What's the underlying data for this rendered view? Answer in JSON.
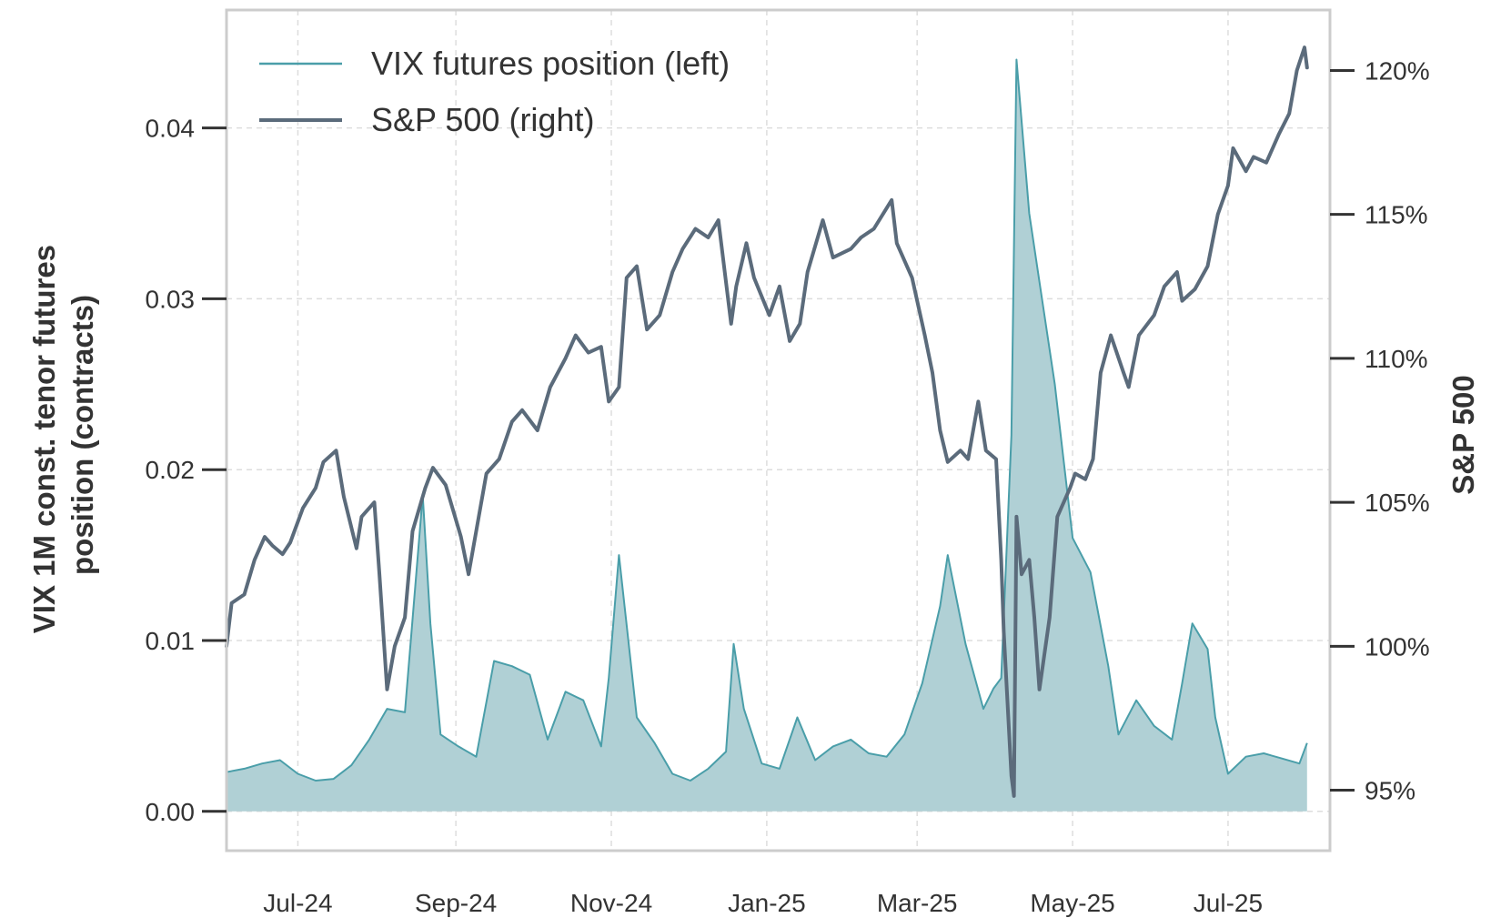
{
  "chart_data": {
    "type": "line",
    "title": "",
    "ylabel_left": "VIX 1M const. tenor futures position (contracts)",
    "ylabel_left_lines": [
      "VIX 1M const. tenor futures",
      "position (contracts)"
    ],
    "ylabel_right": "S&P 500",
    "xlim": [
      "2024-06-03",
      "2025-08-10"
    ],
    "ylim_left": [
      -0.0023,
      0.0469
    ],
    "ylim_right": [
      92.9,
      122.1
    ],
    "x_ticks": [
      {
        "date": "2024-07-01",
        "label": "Jul-24"
      },
      {
        "date": "2024-09-01",
        "label": "Sep-24"
      },
      {
        "date": "2024-11-01",
        "label": "Nov-24"
      },
      {
        "date": "2025-01-01",
        "label": "Jan-25"
      },
      {
        "date": "2025-03-01",
        "label": "Mar-25"
      },
      {
        "date": "2025-05-01",
        "label": "May-25"
      },
      {
        "date": "2025-07-01",
        "label": "Jul-25"
      }
    ],
    "y_left_ticks": [
      {
        "value": 0.0,
        "label": "0.00"
      },
      {
        "value": 0.01,
        "label": "0.01"
      },
      {
        "value": 0.02,
        "label": "0.02"
      },
      {
        "value": 0.03,
        "label": "0.03"
      },
      {
        "value": 0.04,
        "label": "0.04"
      }
    ],
    "y_right_ticks": [
      {
        "value": 95,
        "label": "95%"
      },
      {
        "value": 100,
        "label": "100%"
      },
      {
        "value": 105,
        "label": "105%"
      },
      {
        "value": 110,
        "label": "110%"
      },
      {
        "value": 115,
        "label": "115%"
      },
      {
        "value": 120,
        "label": "120%"
      }
    ],
    "grid": true,
    "legend_position": "top-left",
    "series": [
      {
        "name": "VIX futures position (left)",
        "axis": "left",
        "style": "area",
        "color": "#4a9ea9",
        "fill": "#b0d0d5",
        "points": [
          [
            "2024-06-03",
            0.0023
          ],
          [
            "2024-06-10",
            0.0025
          ],
          [
            "2024-06-17",
            0.0028
          ],
          [
            "2024-06-24",
            0.003
          ],
          [
            "2024-07-01",
            0.0022
          ],
          [
            "2024-07-08",
            0.0018
          ],
          [
            "2024-07-15",
            0.0019
          ],
          [
            "2024-07-22",
            0.0027
          ],
          [
            "2024-07-29",
            0.0042
          ],
          [
            "2024-08-05",
            0.006
          ],
          [
            "2024-08-12",
            0.0058
          ],
          [
            "2024-08-19",
            0.0185
          ],
          [
            "2024-08-22",
            0.011
          ],
          [
            "2024-08-26",
            0.0045
          ],
          [
            "2024-09-02",
            0.0038
          ],
          [
            "2024-09-09",
            0.0032
          ],
          [
            "2024-09-16",
            0.0088
          ],
          [
            "2024-09-23",
            0.0085
          ],
          [
            "2024-09-30",
            0.008
          ],
          [
            "2024-10-07",
            0.0042
          ],
          [
            "2024-10-14",
            0.007
          ],
          [
            "2024-10-21",
            0.0065
          ],
          [
            "2024-10-28",
            0.0038
          ],
          [
            "2024-10-31",
            0.0078
          ],
          [
            "2024-11-04",
            0.015
          ],
          [
            "2024-11-11",
            0.0055
          ],
          [
            "2024-11-18",
            0.004
          ],
          [
            "2024-11-25",
            0.0022
          ],
          [
            "2024-12-02",
            0.0018
          ],
          [
            "2024-12-09",
            0.0025
          ],
          [
            "2024-12-16",
            0.0035
          ],
          [
            "2024-12-19",
            0.0098
          ],
          [
            "2024-12-23",
            0.006
          ],
          [
            "2024-12-30",
            0.0028
          ],
          [
            "2025-01-06",
            0.0025
          ],
          [
            "2025-01-13",
            0.0055
          ],
          [
            "2025-01-20",
            0.003
          ],
          [
            "2025-01-27",
            0.0038
          ],
          [
            "2025-02-03",
            0.0042
          ],
          [
            "2025-02-10",
            0.0034
          ],
          [
            "2025-02-17",
            0.0032
          ],
          [
            "2025-02-24",
            0.0045
          ],
          [
            "2025-03-03",
            0.0075
          ],
          [
            "2025-03-10",
            0.012
          ],
          [
            "2025-03-13",
            0.015
          ],
          [
            "2025-03-20",
            0.0098
          ],
          [
            "2025-03-27",
            0.006
          ],
          [
            "2025-03-31",
            0.0072
          ],
          [
            "2025-04-03",
            0.0078
          ],
          [
            "2025-04-07",
            0.022
          ],
          [
            "2025-04-09",
            0.044
          ],
          [
            "2025-04-14",
            0.035
          ],
          [
            "2025-04-18",
            0.031
          ],
          [
            "2025-04-24",
            0.025
          ],
          [
            "2025-05-01",
            0.016
          ],
          [
            "2025-05-08",
            0.014
          ],
          [
            "2025-05-15",
            0.0085
          ],
          [
            "2025-05-19",
            0.0045
          ],
          [
            "2025-05-26",
            0.0065
          ],
          [
            "2025-06-02",
            0.005
          ],
          [
            "2025-06-09",
            0.0042
          ],
          [
            "2025-06-13",
            0.0075
          ],
          [
            "2025-06-17",
            0.011
          ],
          [
            "2025-06-23",
            0.0095
          ],
          [
            "2025-06-26",
            0.0055
          ],
          [
            "2025-07-01",
            0.0022
          ],
          [
            "2025-07-08",
            0.0032
          ],
          [
            "2025-07-15",
            0.0034
          ],
          [
            "2025-07-22",
            0.0031
          ],
          [
            "2025-07-29",
            0.0028
          ],
          [
            "2025-08-01",
            0.004
          ]
        ]
      },
      {
        "name": "S&P 500 (right)",
        "axis": "right",
        "style": "line",
        "color": "#5b6b7b",
        "points": [
          [
            "2024-06-03",
            100.0
          ],
          [
            "2024-06-05",
            101.5
          ],
          [
            "2024-06-10",
            101.8
          ],
          [
            "2024-06-14",
            103.0
          ],
          [
            "2024-06-18",
            103.8
          ],
          [
            "2024-06-21",
            103.5
          ],
          [
            "2024-06-25",
            103.2
          ],
          [
            "2024-06-28",
            103.6
          ],
          [
            "2024-07-03",
            104.8
          ],
          [
            "2024-07-08",
            105.5
          ],
          [
            "2024-07-11",
            106.4
          ],
          [
            "2024-07-16",
            106.8
          ],
          [
            "2024-07-19",
            105.2
          ],
          [
            "2024-07-24",
            103.4
          ],
          [
            "2024-07-26",
            104.5
          ],
          [
            "2024-07-31",
            105.0
          ],
          [
            "2024-08-02",
            102.5
          ],
          [
            "2024-08-05",
            98.5
          ],
          [
            "2024-08-08",
            100.0
          ],
          [
            "2024-08-12",
            101.0
          ],
          [
            "2024-08-15",
            104.0
          ],
          [
            "2024-08-20",
            105.5
          ],
          [
            "2024-08-23",
            106.2
          ],
          [
            "2024-08-28",
            105.6
          ],
          [
            "2024-09-03",
            103.8
          ],
          [
            "2024-09-06",
            102.5
          ],
          [
            "2024-09-10",
            104.5
          ],
          [
            "2024-09-13",
            106.0
          ],
          [
            "2024-09-18",
            106.5
          ],
          [
            "2024-09-23",
            107.8
          ],
          [
            "2024-09-27",
            108.2
          ],
          [
            "2024-10-03",
            107.5
          ],
          [
            "2024-10-08",
            109.0
          ],
          [
            "2024-10-14",
            110.0
          ],
          [
            "2024-10-18",
            110.8
          ],
          [
            "2024-10-23",
            110.2
          ],
          [
            "2024-10-28",
            110.4
          ],
          [
            "2024-10-31",
            108.5
          ],
          [
            "2024-11-04",
            109.0
          ],
          [
            "2024-11-07",
            112.8
          ],
          [
            "2024-11-11",
            113.2
          ],
          [
            "2024-11-15",
            111.0
          ],
          [
            "2024-11-20",
            111.5
          ],
          [
            "2024-11-25",
            113.0
          ],
          [
            "2024-11-29",
            113.8
          ],
          [
            "2024-12-04",
            114.5
          ],
          [
            "2024-12-09",
            114.2
          ],
          [
            "2024-12-13",
            114.8
          ],
          [
            "2024-12-18",
            111.2
          ],
          [
            "2024-12-20",
            112.5
          ],
          [
            "2024-12-24",
            114.0
          ],
          [
            "2024-12-27",
            112.8
          ],
          [
            "2025-01-02",
            111.5
          ],
          [
            "2025-01-06",
            112.5
          ],
          [
            "2025-01-10",
            110.6
          ],
          [
            "2025-01-14",
            111.2
          ],
          [
            "2025-01-17",
            113.0
          ],
          [
            "2025-01-23",
            114.8
          ],
          [
            "2025-01-27",
            113.5
          ],
          [
            "2025-02-03",
            113.8
          ],
          [
            "2025-02-07",
            114.2
          ],
          [
            "2025-02-12",
            114.5
          ],
          [
            "2025-02-19",
            115.5
          ],
          [
            "2025-02-21",
            114.0
          ],
          [
            "2025-02-27",
            112.8
          ],
          [
            "2025-03-04",
            110.8
          ],
          [
            "2025-03-07",
            109.5
          ],
          [
            "2025-03-10",
            107.5
          ],
          [
            "2025-03-13",
            106.4
          ],
          [
            "2025-03-18",
            106.8
          ],
          [
            "2025-03-21",
            106.5
          ],
          [
            "2025-03-25",
            108.5
          ],
          [
            "2025-03-28",
            106.8
          ],
          [
            "2025-04-01",
            106.5
          ],
          [
            "2025-04-03",
            103.0
          ],
          [
            "2025-04-04",
            100.5
          ],
          [
            "2025-04-07",
            95.5
          ],
          [
            "2025-04-08",
            94.8
          ],
          [
            "2025-04-09",
            104.5
          ],
          [
            "2025-04-11",
            102.5
          ],
          [
            "2025-04-14",
            103.0
          ],
          [
            "2025-04-16",
            101.0
          ],
          [
            "2025-04-18",
            98.5
          ],
          [
            "2025-04-22",
            101.0
          ],
          [
            "2025-04-25",
            104.5
          ],
          [
            "2025-04-30",
            105.5
          ],
          [
            "2025-05-02",
            106.0
          ],
          [
            "2025-05-06",
            105.8
          ],
          [
            "2025-05-09",
            106.5
          ],
          [
            "2025-05-12",
            109.5
          ],
          [
            "2025-05-16",
            110.8
          ],
          [
            "2025-05-21",
            109.5
          ],
          [
            "2025-05-23",
            109.0
          ],
          [
            "2025-05-27",
            110.8
          ],
          [
            "2025-06-02",
            111.5
          ],
          [
            "2025-06-06",
            112.5
          ],
          [
            "2025-06-11",
            113.0
          ],
          [
            "2025-06-13",
            112.0
          ],
          [
            "2025-06-18",
            112.4
          ],
          [
            "2025-06-23",
            113.2
          ],
          [
            "2025-06-27",
            115.0
          ],
          [
            "2025-07-01",
            116.0
          ],
          [
            "2025-07-03",
            117.3
          ],
          [
            "2025-07-08",
            116.5
          ],
          [
            "2025-07-11",
            117.0
          ],
          [
            "2025-07-16",
            116.8
          ],
          [
            "2025-07-21",
            117.8
          ],
          [
            "2025-07-25",
            118.5
          ],
          [
            "2025-07-28",
            120.0
          ],
          [
            "2025-07-31",
            120.8
          ],
          [
            "2025-08-01",
            120.1
          ]
        ]
      }
    ]
  }
}
